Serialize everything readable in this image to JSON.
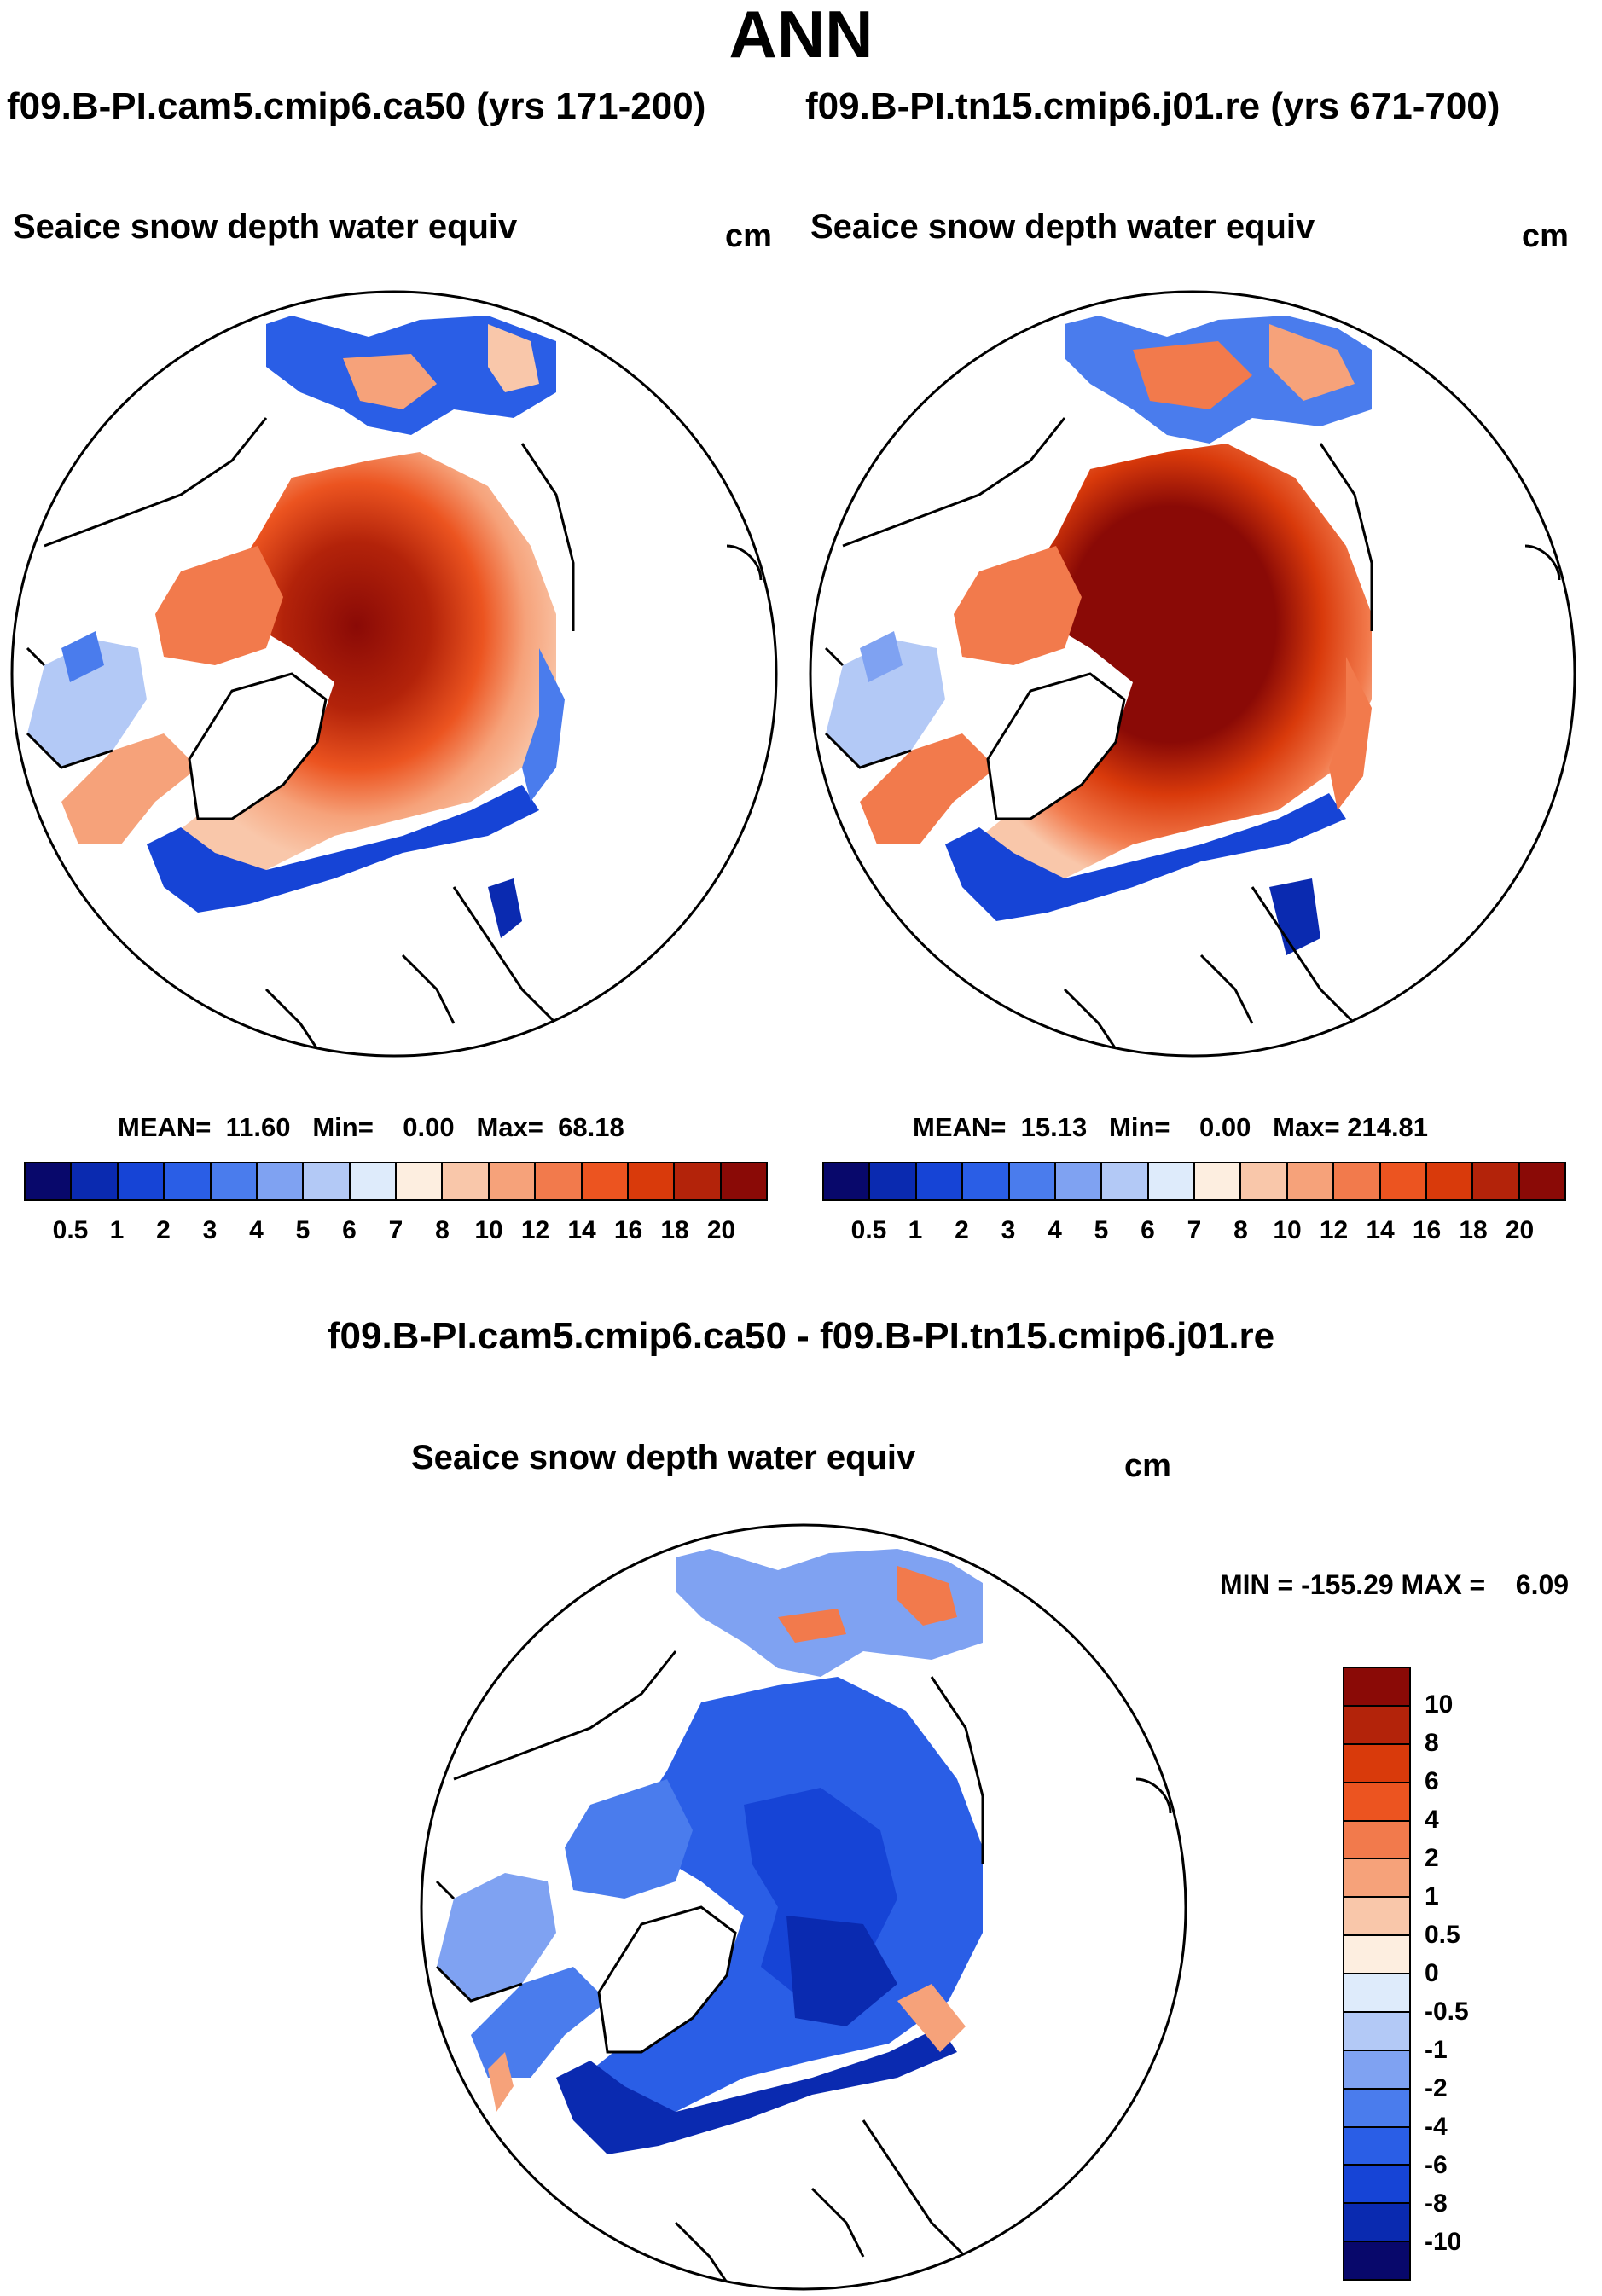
{
  "page": {
    "title": "ANN",
    "subtitle_left": "f09.B-PI.cam5.cmip6.ca50 (yrs 171-200)",
    "subtitle_right": "f09.B-PI.tn15.cmip6.j01.re (yrs 671-700)"
  },
  "colors": {
    "abs_palette": [
      "#08086b",
      "#0a2ab0",
      "#1644d6",
      "#2a5ee6",
      "#4a7ced",
      "#7fa2f2",
      "#b3c9f6",
      "#deebfb",
      "#fdeee0",
      "#f9c7aa",
      "#f6a27a",
      "#f27a4c",
      "#ec5420",
      "#d93a0b",
      "#b3230a",
      "#8a0a06"
    ],
    "diff_palette": [
      "#8a0a06",
      "#b3230a",
      "#d93a0b",
      "#ec5420",
      "#f27a4c",
      "#f6a27a",
      "#f9c7aa",
      "#fdeee0",
      "#deebfb",
      "#b3c9f6",
      "#7fa2f2",
      "#4a7ced",
      "#2a5ee6",
      "#1644d6",
      "#0a2ab0",
      "#08086b"
    ]
  },
  "panel_left": {
    "title": "Seaice snow depth water equiv",
    "units": "cm",
    "mean_label": "MEAN=",
    "mean_value": "11.60",
    "min_label": "Min=",
    "min_value": "0.00",
    "max_label": "Max=",
    "max_value": "68.18"
  },
  "panel_right": {
    "title": "Seaice snow depth water equiv",
    "units": "cm",
    "mean_label": "MEAN=",
    "mean_value": "15.13",
    "min_label": "Min=",
    "min_value": "0.00",
    "max_label": "Max=",
    "max_value": "214.81"
  },
  "abs_colorbar_ticks": [
    "0.5",
    "1",
    "2",
    "3",
    "4",
    "5",
    "6",
    "7",
    "8",
    "10",
    "12",
    "14",
    "16",
    "18",
    "20"
  ],
  "diff_panel": {
    "heading": "f09.B-PI.cam5.cmip6.ca50 - f09.B-PI.tn15.cmip6.j01.re",
    "title": "Seaice snow depth water equiv",
    "units": "cm",
    "min_label": "MIN =",
    "min_value": "-155.29",
    "max_label": "MAX =",
    "max_value": "6.09",
    "colorbar_ticks": [
      "10",
      "8",
      "6",
      "4",
      "2",
      "1",
      "0.5",
      "0",
      "-0.5",
      "-1",
      "-2",
      "-4",
      "-6",
      "-8",
      "-10"
    ]
  }
}
